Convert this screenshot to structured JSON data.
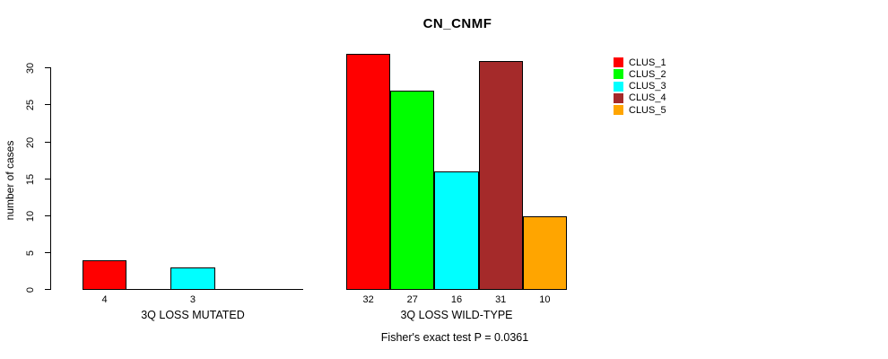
{
  "chart_data": {
    "type": "bar",
    "title": "CN_CNMF",
    "ylabel": "number of cases",
    "xlabel": "",
    "annotation": "Fisher's exact test P = 0.0361",
    "ylim": [
      0,
      30
    ],
    "yticks": [
      0,
      5,
      10,
      15,
      20,
      25,
      30
    ],
    "grid": false,
    "legend_position": "right",
    "groups": [
      "3Q LOSS MUTATED",
      "3Q LOSS WILD-TYPE"
    ],
    "series": [
      {
        "name": "CLUS_1",
        "color": "#FF0000",
        "values": [
          4,
          32
        ]
      },
      {
        "name": "CLUS_2",
        "color": "#00FF00",
        "values": [
          0,
          27
        ]
      },
      {
        "name": "CLUS_3",
        "color": "#00FFFF",
        "values": [
          3,
          16
        ]
      },
      {
        "name": "CLUS_4",
        "color": "#A52A2A",
        "values": [
          0,
          31
        ]
      },
      {
        "name": "CLUS_5",
        "color": "#FFA500",
        "values": [
          0,
          10
        ]
      }
    ],
    "bar_value_labels": {
      "shown": true,
      "only_nonzero": true
    },
    "axis_color": "#000000",
    "background_color": "#FFFFFF"
  }
}
